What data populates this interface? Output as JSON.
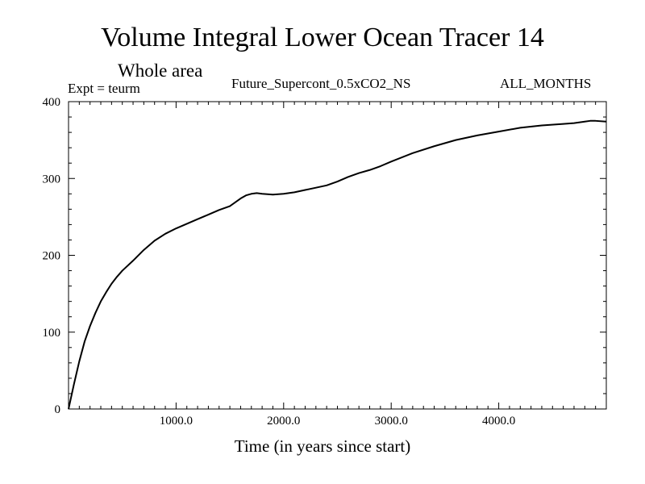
{
  "chart_data": {
    "type": "line",
    "title": "Volume Integral Lower Ocean Tracer 14",
    "subtitle": "Whole area",
    "experiment_label": "Expt = teurm",
    "run_label": "Future_Supercont_0.5xCO2_NS",
    "months_label": "ALL_MONTHS",
    "xlabel": "Time (in years since start)",
    "ylabel": "",
    "xlim": [
      0,
      5000
    ],
    "ylim": [
      0,
      400
    ],
    "x_tick_labels": [
      "1000.0",
      "2000.0",
      "3000.0",
      "4000.0"
    ],
    "x_tick_values": [
      1000,
      2000,
      3000,
      4000
    ],
    "y_tick_labels": [
      "0",
      "100",
      "200",
      "300",
      "400"
    ],
    "y_tick_values": [
      0,
      100,
      200,
      300,
      400
    ],
    "grid": false,
    "line_color": "#000000",
    "series": [
      {
        "x": [
          0,
          50,
          100,
          150,
          200,
          250,
          300,
          350,
          400,
          450,
          500,
          600,
          700,
          800,
          900,
          1000,
          1100,
          1200,
          1300,
          1400,
          1500,
          1550,
          1600,
          1650,
          1700,
          1750,
          1800,
          1900,
          2000,
          2100,
          2200,
          2300,
          2400,
          2500,
          2600,
          2700,
          2800,
          2900,
          3000,
          3200,
          3400,
          3600,
          3800,
          4000,
          4200,
          4400,
          4600,
          4700,
          4800,
          4850,
          4900,
          5000
        ],
        "y": [
          0,
          32,
          62,
          88,
          108,
          125,
          140,
          152,
          163,
          172,
          180,
          193,
          207,
          219,
          228,
          235,
          241,
          247,
          253,
          259,
          264,
          269,
          274,
          278,
          280,
          281,
          280,
          279,
          280,
          282,
          285,
          288,
          291,
          296,
          302,
          307,
          311,
          316,
          322,
          333,
          342,
          350,
          356,
          361,
          366,
          369,
          371,
          372,
          374,
          375,
          375,
          374
        ]
      }
    ]
  }
}
